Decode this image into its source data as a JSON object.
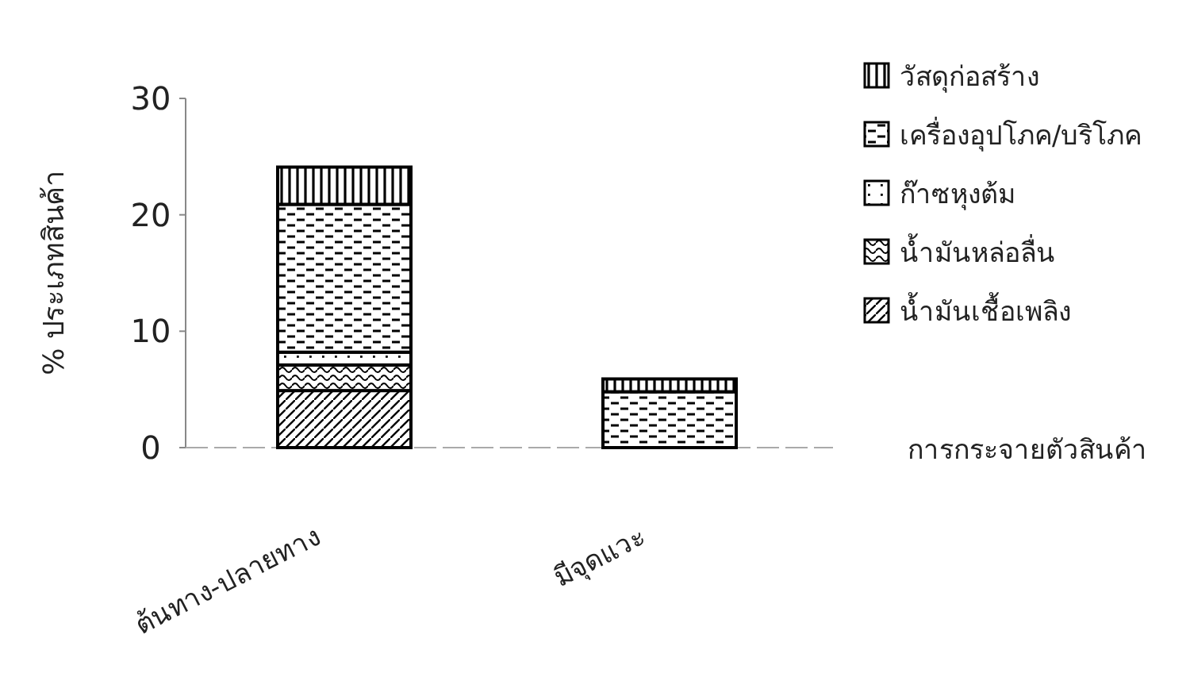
{
  "chart_data": {
    "type": "bar",
    "stacked": true,
    "xlabel": "การกระจายตัวสินค้า",
    "ylabel": "% ประเภทสินค้า",
    "categories": [
      "ต้นทาง-ปลายทาง",
      "มีจุดแวะ"
    ],
    "series": [
      {
        "name": "น้ำมันเชื้อเพลิง",
        "color": "#000000",
        "values": [
          4.9,
          0
        ]
      },
      {
        "name": "น้ำมันหล่อลื่น",
        "color": "#000000",
        "values": [
          2.2,
          0
        ]
      },
      {
        "name": "ก๊าซหุงต้ม",
        "color": "#000000",
        "values": [
          1.1,
          0
        ]
      },
      {
        "name": "เครื่องอุปโภค/บริโภค",
        "color": "#000000",
        "values": [
          12.7,
          4.8
        ]
      },
      {
        "name": "วัสดุก่อสร้าง",
        "color": "#000000",
        "values": [
          3.2,
          1.1
        ]
      }
    ],
    "ylim": [
      0,
      30
    ],
    "yticks": [
      0,
      10,
      20,
      30
    ],
    "legend": "right",
    "grid": false
  }
}
